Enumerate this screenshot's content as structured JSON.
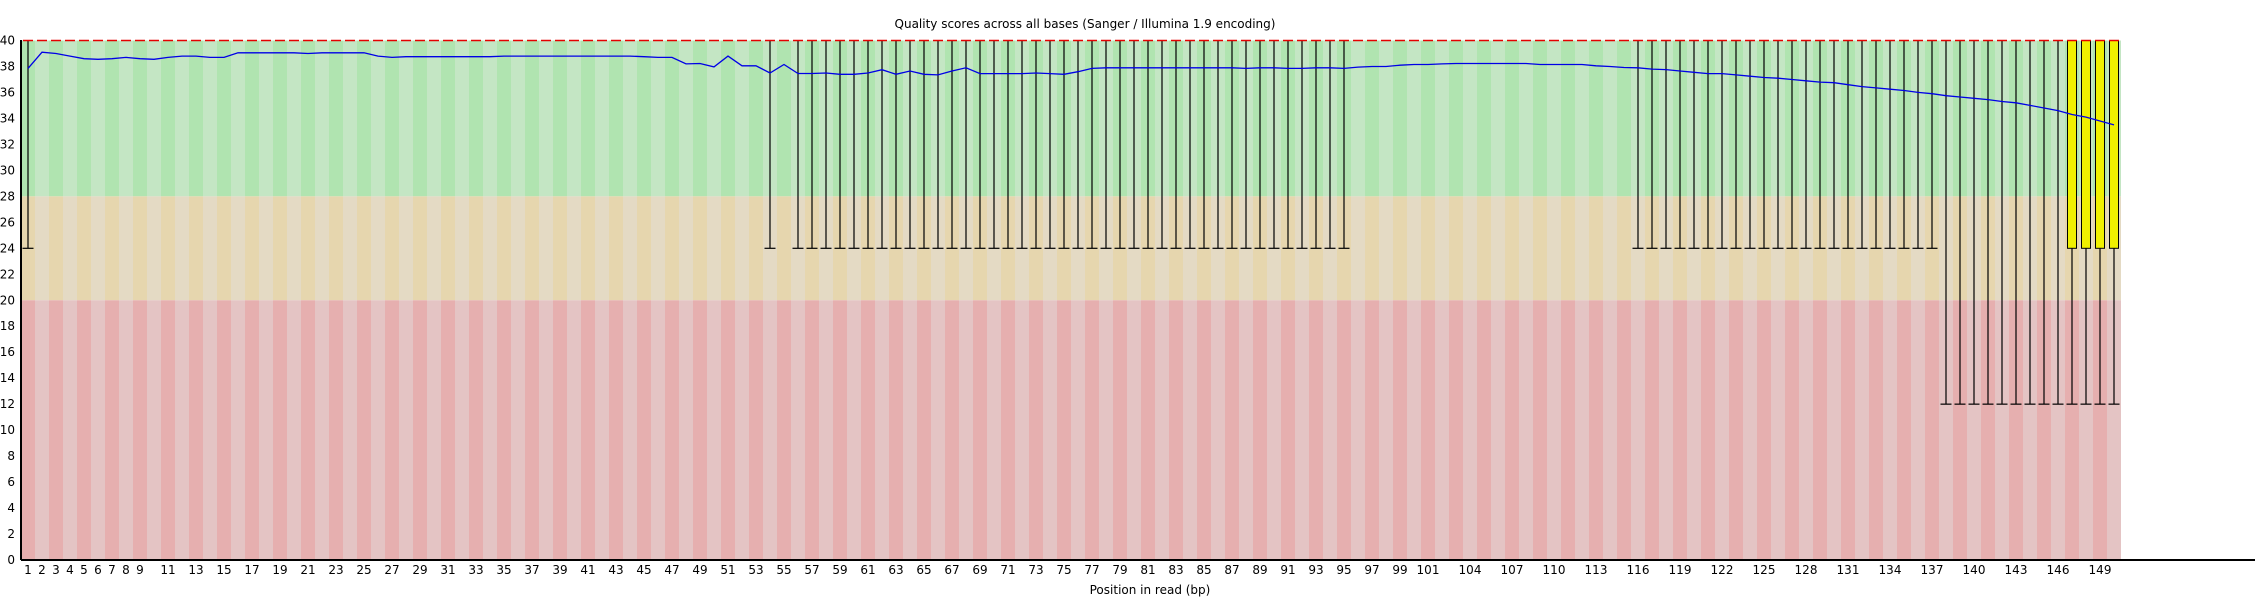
{
  "chart_data": {
    "type": "boxplot",
    "title": "Quality scores across all bases (Sanger / Illumina 1.9 encoding)",
    "xlabel": "Position in read (bp)",
    "ylabel": "",
    "ylim": [
      0,
      40
    ],
    "y_ticks": [
      0,
      2,
      4,
      6,
      8,
      10,
      12,
      14,
      16,
      18,
      20,
      22,
      24,
      26,
      28,
      30,
      32,
      34,
      36,
      38,
      40
    ],
    "x_tick_labels": [
      "1",
      "2",
      "3",
      "4",
      "5",
      "6",
      "7",
      "8",
      "9",
      "11",
      "13",
      "15",
      "17",
      "19",
      "21",
      "23",
      "25",
      "27",
      "29",
      "31",
      "33",
      "35",
      "37",
      "39",
      "41",
      "43",
      "45",
      "47",
      "49",
      "51",
      "53",
      "55",
      "57",
      "59",
      "61",
      "63",
      "65",
      "67",
      "69",
      "71",
      "73",
      "75",
      "77",
      "79",
      "81",
      "83",
      "85",
      "87",
      "89",
      "91",
      "93",
      "95",
      "97",
      "99",
      "101",
      "104",
      "107",
      "110",
      "113",
      "116",
      "119",
      "122",
      "125",
      "128",
      "131",
      "134",
      "137",
      "140",
      "143",
      "146",
      "149"
    ],
    "positions_count": 150,
    "background_bands": [
      {
        "from": 28,
        "to": 40,
        "colors": [
          "#b0e4b0",
          "#c4e6c4"
        ]
      },
      {
        "from": 20,
        "to": 28,
        "colors": [
          "#e6d6ae",
          "#e4dac4"
        ]
      },
      {
        "from": 0,
        "to": 20,
        "colors": [
          "#e6afaf",
          "#e4c4c4"
        ]
      }
    ],
    "colors": {
      "mean": "#0000e6",
      "median": "#e60000",
      "box": "#f0f000",
      "whisker": "#000000"
    },
    "mean": [
      37.85,
      39.1,
      39.0,
      38.8,
      38.6,
      38.55,
      38.6,
      38.7,
      38.6,
      38.55,
      38.7,
      38.8,
      38.8,
      38.7,
      38.7,
      39.05,
      39.05,
      39.05,
      39.05,
      39.05,
      39.0,
      39.05,
      39.05,
      39.05,
      39.05,
      38.8,
      38.7,
      38.75,
      38.75,
      38.75,
      38.75,
      38.75,
      38.75,
      38.75,
      38.8,
      38.8,
      38.8,
      38.8,
      38.8,
      38.8,
      38.8,
      38.8,
      38.8,
      38.8,
      38.75,
      38.7,
      38.7,
      38.2,
      38.23,
      37.97,
      38.8,
      38.05,
      38.05,
      37.5,
      38.15,
      37.46,
      37.46,
      37.5,
      37.4,
      37.4,
      37.5,
      37.75,
      37.4,
      37.65,
      37.4,
      37.35,
      37.65,
      37.9,
      37.45,
      37.45,
      37.45,
      37.45,
      37.5,
      37.45,
      37.4,
      37.6,
      37.85,
      37.9,
      37.9,
      37.9,
      37.9,
      37.9,
      37.9,
      37.9,
      37.9,
      37.9,
      37.9,
      37.85,
      37.9,
      37.9,
      37.85,
      37.85,
      37.9,
      37.9,
      37.85,
      37.95,
      38.0,
      38.0,
      38.1,
      38.15,
      38.15,
      38.2,
      38.23,
      38.23,
      38.23,
      38.23,
      38.23,
      38.23,
      38.15,
      38.15,
      38.15,
      38.15,
      38.05,
      38.0,
      37.92,
      37.9,
      37.8,
      37.76,
      37.65,
      37.55,
      37.45,
      37.45,
      37.35,
      37.25,
      37.15,
      37.1,
      37.0,
      36.9,
      36.8,
      36.75,
      36.6,
      36.45,
      36.35,
      36.25,
      36.15,
      36.0,
      35.9,
      35.75,
      35.65,
      35.55,
      35.45,
      35.3,
      35.2,
      35.0,
      34.8,
      34.6,
      34.3,
      34.1,
      33.8,
      33.5
    ],
    "median_all": 40,
    "upper_quartile_all": 40,
    "percentile_90_all": 40,
    "lower_quartile_ranges": [
      {
        "from": 1,
        "to": 146,
        "value": 40
      },
      {
        "from": 147,
        "to": 150,
        "value": 24
      }
    ],
    "percentile_10_ranges": [
      {
        "from": 1,
        "to": 1,
        "value": 24
      },
      {
        "from": 2,
        "to": 53,
        "value": 40
      },
      {
        "from": 54,
        "to": 54,
        "value": 24
      },
      {
        "from": 55,
        "to": 55,
        "value": 40
      },
      {
        "from": 56,
        "to": 95,
        "value": 24
      },
      {
        "from": 96,
        "to": 115,
        "value": 40
      },
      {
        "from": 116,
        "to": 137,
        "value": 24
      },
      {
        "from": 138,
        "to": 150,
        "value": 12
      }
    ]
  }
}
